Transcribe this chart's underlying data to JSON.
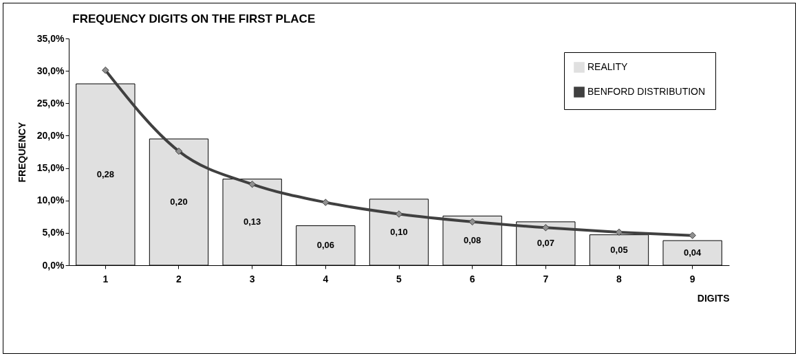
{
  "chart_data": {
    "type": "bar",
    "title": "FREQUENCY DIGITS ON THE FIRST PLACE",
    "xlabel": "DIGITS",
    "ylabel": "FREQUENCY",
    "categories": [
      "1",
      "2",
      "3",
      "4",
      "5",
      "6",
      "7",
      "8",
      "9"
    ],
    "series": [
      {
        "name": "REALITY",
        "color": "#e0e0e0",
        "values": [
          0.28,
          0.195,
          0.133,
          0.061,
          0.102,
          0.076,
          0.067,
          0.047,
          0.038
        ],
        "value_labels": [
          "0,28",
          "0,20",
          "0,13",
          "0,06",
          "0,10",
          "0,08",
          "0,07",
          "0,05",
          "0,04"
        ]
      },
      {
        "name": "BENFORD DISTRIBUTION",
        "type": "line",
        "color": "#404040",
        "marker": "diamond",
        "values": [
          0.301,
          0.176,
          0.125,
          0.097,
          0.079,
          0.067,
          0.058,
          0.051,
          0.046
        ]
      }
    ],
    "ylim": [
      0,
      0.35
    ],
    "yticks": [
      {
        "value": 0,
        "label": "0,0%"
      },
      {
        "value": 0.05,
        "label": "5,0%"
      },
      {
        "value": 0.1,
        "label": "10,0%"
      },
      {
        "value": 0.15,
        "label": "15,0%"
      },
      {
        "value": 0.2,
        "label": "20,0%"
      },
      {
        "value": 0.25,
        "label": "25,0%"
      },
      {
        "value": 0.3,
        "label": "30,0%"
      },
      {
        "value": 0.35,
        "label": "35,0%"
      }
    ],
    "grid": false,
    "legend": "top right"
  }
}
